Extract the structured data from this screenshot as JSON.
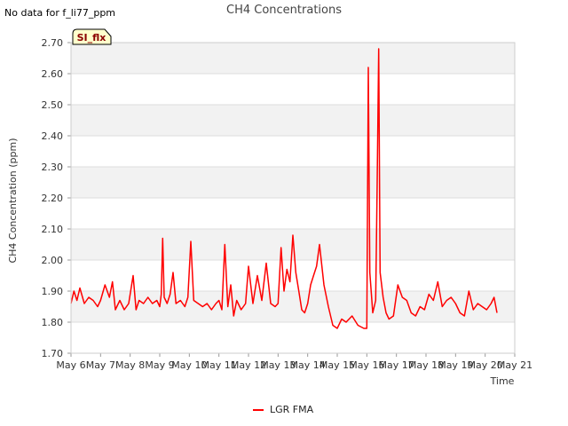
{
  "no_data_note": "No data for f_li77_ppm",
  "badge": {
    "label": "SI_flx",
    "fill": "#ffffcc",
    "text_color": "#8b0000"
  },
  "colors": {
    "series": "#ff0000",
    "band": "#f2f2f2",
    "grid": "#dddddd",
    "axis": "#cccccc"
  },
  "chart_data": {
    "type": "line",
    "title": "CH4 Concentrations",
    "xlabel": "Time",
    "ylabel": "CH4 Concentration (ppm)",
    "ylim": [
      1.7,
      2.7
    ],
    "xlim": [
      6,
      21
    ],
    "yticks": [
      1.7,
      1.8,
      1.9,
      2.0,
      2.1,
      2.2,
      2.3,
      2.4,
      2.5,
      2.6,
      2.7
    ],
    "ytick_labels": [
      "1.70",
      "1.80",
      "1.90",
      "2.00",
      "2.10",
      "2.20",
      "2.30",
      "2.40",
      "2.50",
      "2.60",
      "2.70"
    ],
    "xticks": [
      6,
      7,
      8,
      9,
      10,
      11,
      12,
      13,
      14,
      15,
      16,
      17,
      18,
      19,
      20,
      21
    ],
    "xtick_labels": [
      "May 6",
      "May 7",
      "May 8",
      "May 9",
      "May 10",
      "May 11",
      "May 12",
      "May 13",
      "May 14",
      "May 15",
      "May 16",
      "May 17",
      "May 18",
      "May 19",
      "May 20",
      "May 21"
    ],
    "legend": {
      "position": "bottom-center"
    },
    "series": [
      {
        "name": "LGR FMA",
        "color": "#ff0000",
        "x": [
          6.0,
          6.1,
          6.2,
          6.3,
          6.45,
          6.6,
          6.75,
          6.9,
          7.0,
          7.15,
          7.3,
          7.4,
          7.5,
          7.65,
          7.8,
          7.95,
          8.1,
          8.2,
          8.3,
          8.45,
          8.6,
          8.75,
          8.9,
          9.0,
          9.05,
          9.1,
          9.15,
          9.25,
          9.35,
          9.45,
          9.55,
          9.7,
          9.85,
          9.95,
          10.05,
          10.15,
          10.3,
          10.45,
          10.6,
          10.75,
          10.9,
          11.0,
          11.1,
          11.2,
          11.3,
          11.4,
          11.5,
          11.6,
          11.75,
          11.9,
          12.0,
          12.15,
          12.3,
          12.45,
          12.6,
          12.75,
          12.9,
          13.0,
          13.1,
          13.2,
          13.3,
          13.4,
          13.5,
          13.6,
          13.7,
          13.8,
          13.9,
          14.0,
          14.1,
          14.2,
          14.3,
          14.4,
          14.55,
          14.7,
          14.85,
          15.0,
          15.15,
          15.3,
          15.5,
          15.7,
          15.9,
          16.0,
          16.05,
          16.1,
          16.2,
          16.3,
          16.35,
          16.4,
          16.45,
          16.55,
          16.65,
          16.75,
          16.9,
          17.05,
          17.2,
          17.35,
          17.5,
          17.65,
          17.8,
          17.95,
          18.1,
          18.25,
          18.4,
          18.55,
          18.7,
          18.85,
          19.0,
          19.15,
          19.3,
          19.45,
          19.6,
          19.75,
          19.9,
          20.05,
          20.2,
          20.3,
          20.4
        ],
        "values": [
          1.86,
          1.9,
          1.87,
          1.91,
          1.86,
          1.88,
          1.87,
          1.85,
          1.87,
          1.92,
          1.88,
          1.93,
          1.84,
          1.87,
          1.84,
          1.86,
          1.95,
          1.84,
          1.87,
          1.86,
          1.88,
          1.86,
          1.87,
          1.85,
          1.89,
          2.07,
          1.88,
          1.86,
          1.89,
          1.96,
          1.86,
          1.87,
          1.85,
          1.88,
          2.06,
          1.87,
          1.86,
          1.85,
          1.86,
          1.84,
          1.86,
          1.87,
          1.84,
          2.05,
          1.85,
          1.92,
          1.82,
          1.87,
          1.84,
          1.86,
          1.98,
          1.86,
          1.95,
          1.87,
          1.99,
          1.86,
          1.85,
          1.86,
          2.04,
          1.9,
          1.97,
          1.93,
          2.08,
          1.96,
          1.9,
          1.84,
          1.83,
          1.86,
          1.92,
          1.95,
          1.98,
          2.05,
          1.92,
          1.85,
          1.79,
          1.78,
          1.81,
          1.8,
          1.82,
          1.79,
          1.78,
          1.78,
          2.62,
          1.96,
          1.83,
          1.87,
          2.25,
          2.68,
          1.96,
          1.88,
          1.83,
          1.81,
          1.82,
          1.92,
          1.88,
          1.87,
          1.83,
          1.82,
          1.85,
          1.84,
          1.89,
          1.87,
          1.93,
          1.85,
          1.87,
          1.88,
          1.86,
          1.83,
          1.82,
          1.9,
          1.84,
          1.86,
          1.85,
          1.84,
          1.86,
          1.88,
          1.83
        ]
      }
    ]
  }
}
